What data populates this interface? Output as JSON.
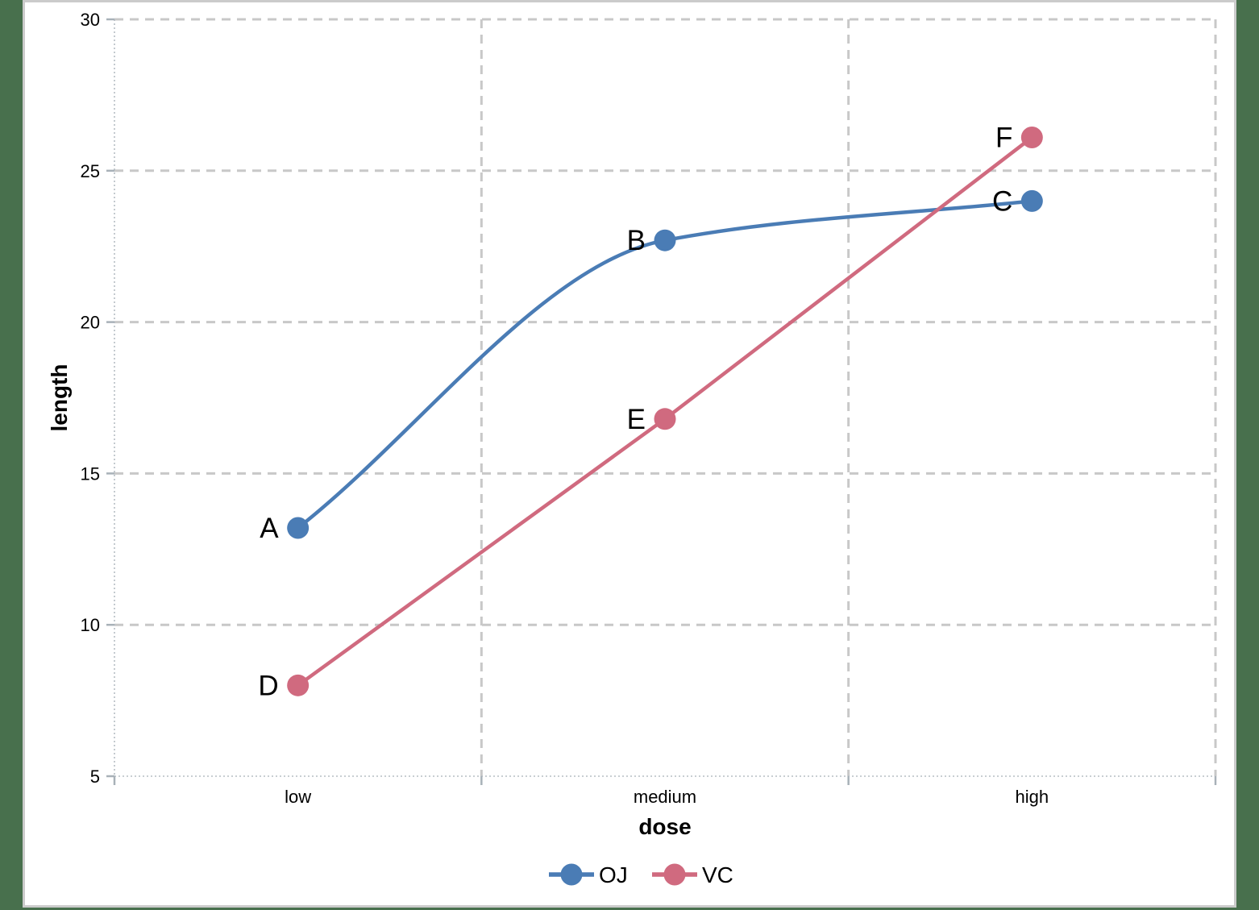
{
  "figure": {
    "page_background": "#48704d",
    "frame_border_color": "#cbcbcb",
    "plot_background": "#ffffff"
  },
  "chart_data": {
    "type": "line",
    "categories": [
      "low",
      "medium",
      "high"
    ],
    "series": [
      {
        "name": "OJ",
        "color": "#4a7cb5",
        "values": [
          13.2,
          22.7,
          24.0
        ],
        "point_labels": [
          "A",
          "B",
          "C"
        ],
        "smooth": true
      },
      {
        "name": "VC",
        "color": "#d06a7f",
        "values": [
          8.0,
          16.8,
          26.1
        ],
        "point_labels": [
          "D",
          "E",
          "F"
        ],
        "smooth": false
      }
    ],
    "xlabel": "dose",
    "ylabel": "length",
    "ylim": [
      5,
      30
    ],
    "yticks": [
      5,
      10,
      15,
      20,
      25,
      30
    ],
    "grid": {
      "horizontal": "dashed at yticks above minimum",
      "vertical": "dashed at category band boundaries",
      "grid_color": "#c8c8c8",
      "axis_line_style": "dotted",
      "axis_line_color": "#b6bdc3",
      "tick_color": "#a8b1b8"
    },
    "legend": {
      "position": "bottom-center",
      "entries": [
        "OJ",
        "VC"
      ]
    }
  }
}
